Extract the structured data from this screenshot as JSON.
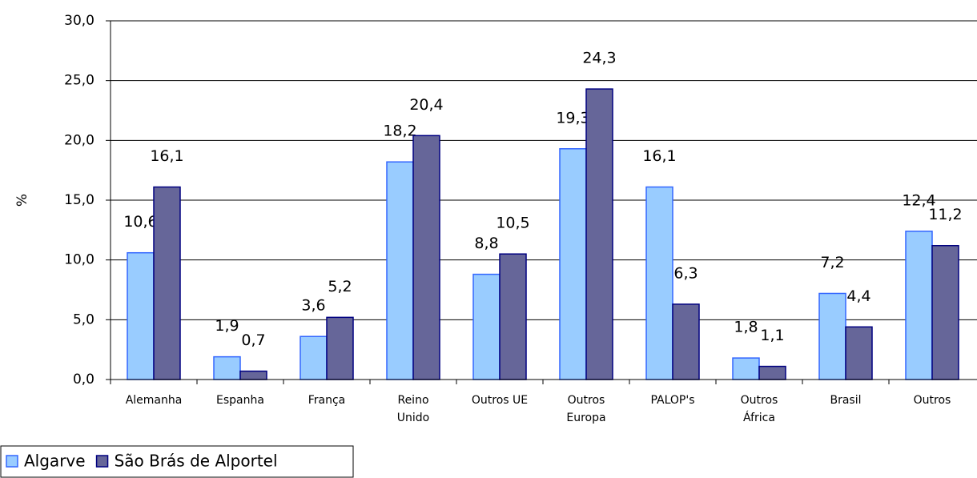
{
  "chart_data": {
    "type": "bar",
    "y_label": "%",
    "categories": [
      "Alemanha",
      "Espanha",
      "França",
      "Reino\nUnido",
      "Outros UE",
      "Outros\nEuropa",
      "PALOP's",
      "Outros\nÁfrica",
      "Brasil",
      "Outros"
    ],
    "series": [
      {
        "name": "Algarve",
        "color": "#99ccff",
        "border": "#3366ff",
        "values": [
          10.6,
          1.9,
          3.6,
          18.2,
          8.8,
          19.3,
          16.1,
          1.8,
          7.2,
          12.4
        ],
        "value_labels": [
          "10,6",
          "1,9",
          "3,6",
          "18,2",
          "8,8",
          "19,3",
          "16,1",
          "1,8",
          "7,2",
          "12,4"
        ]
      },
      {
        "name": "São Brás de Alportel",
        "color": "#666699",
        "border": "#000080",
        "values": [
          16.1,
          0.7,
          5.2,
          20.4,
          10.5,
          24.3,
          6.3,
          1.1,
          4.4,
          11.2
        ],
        "value_labels": [
          "16,1",
          "0,7",
          "5,2",
          "20,4",
          "10,5",
          "24,3",
          "6,3",
          "1,1",
          "4,4",
          "11,2"
        ]
      }
    ],
    "ylim": [
      0,
      30
    ],
    "yticks": [
      {
        "value": 0,
        "label": "0,0"
      },
      {
        "value": 5,
        "label": "5,0"
      },
      {
        "value": 10,
        "label": "10,0"
      },
      {
        "value": 15,
        "label": "15,0"
      },
      {
        "value": 20,
        "label": "20,0"
      },
      {
        "value": 25,
        "label": "25,0"
      },
      {
        "value": 30,
        "label": "30,0"
      }
    ],
    "grid": true
  }
}
